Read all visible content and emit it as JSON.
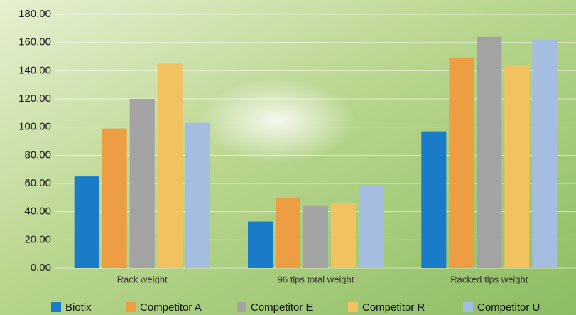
{
  "chart_data": {
    "type": "bar",
    "categories": [
      "Rack weight",
      "96 tips total weight",
      "Racked tips weight"
    ],
    "series": [
      {
        "name": "Biotix",
        "color": "#1a7cc8",
        "values": [
          65,
          33,
          97
        ]
      },
      {
        "name": "Competitor A",
        "color": "#ee9e42",
        "values": [
          99,
          50,
          149
        ]
      },
      {
        "name": "Competitor E",
        "color": "#a3a3a3",
        "values": [
          120,
          44,
          164
        ]
      },
      {
        "name": "Competitor R",
        "color": "#f2c260",
        "values": [
          145,
          46,
          144
        ]
      },
      {
        "name": "Competitor U",
        "color": "#a6bde2",
        "values": [
          103,
          59,
          162
        ]
      }
    ],
    "ylim": [
      0,
      180
    ],
    "yticks": [
      {
        "value": 0,
        "label": "0.00"
      },
      {
        "value": 20,
        "label": "20.00"
      },
      {
        "value": 40,
        "label": "40.00"
      },
      {
        "value": 60,
        "label": "60.00"
      },
      {
        "value": 80,
        "label": "80.00"
      },
      {
        "value": 100,
        "label": "100.00"
      },
      {
        "value": 120,
        "label": "120.00"
      },
      {
        "value": 140,
        "label": "140.00"
      },
      {
        "value": 160,
        "label": "160.00"
      },
      {
        "value": 180,
        "label": "180.00"
      }
    ],
    "grid": true,
    "legend": "bottom"
  }
}
